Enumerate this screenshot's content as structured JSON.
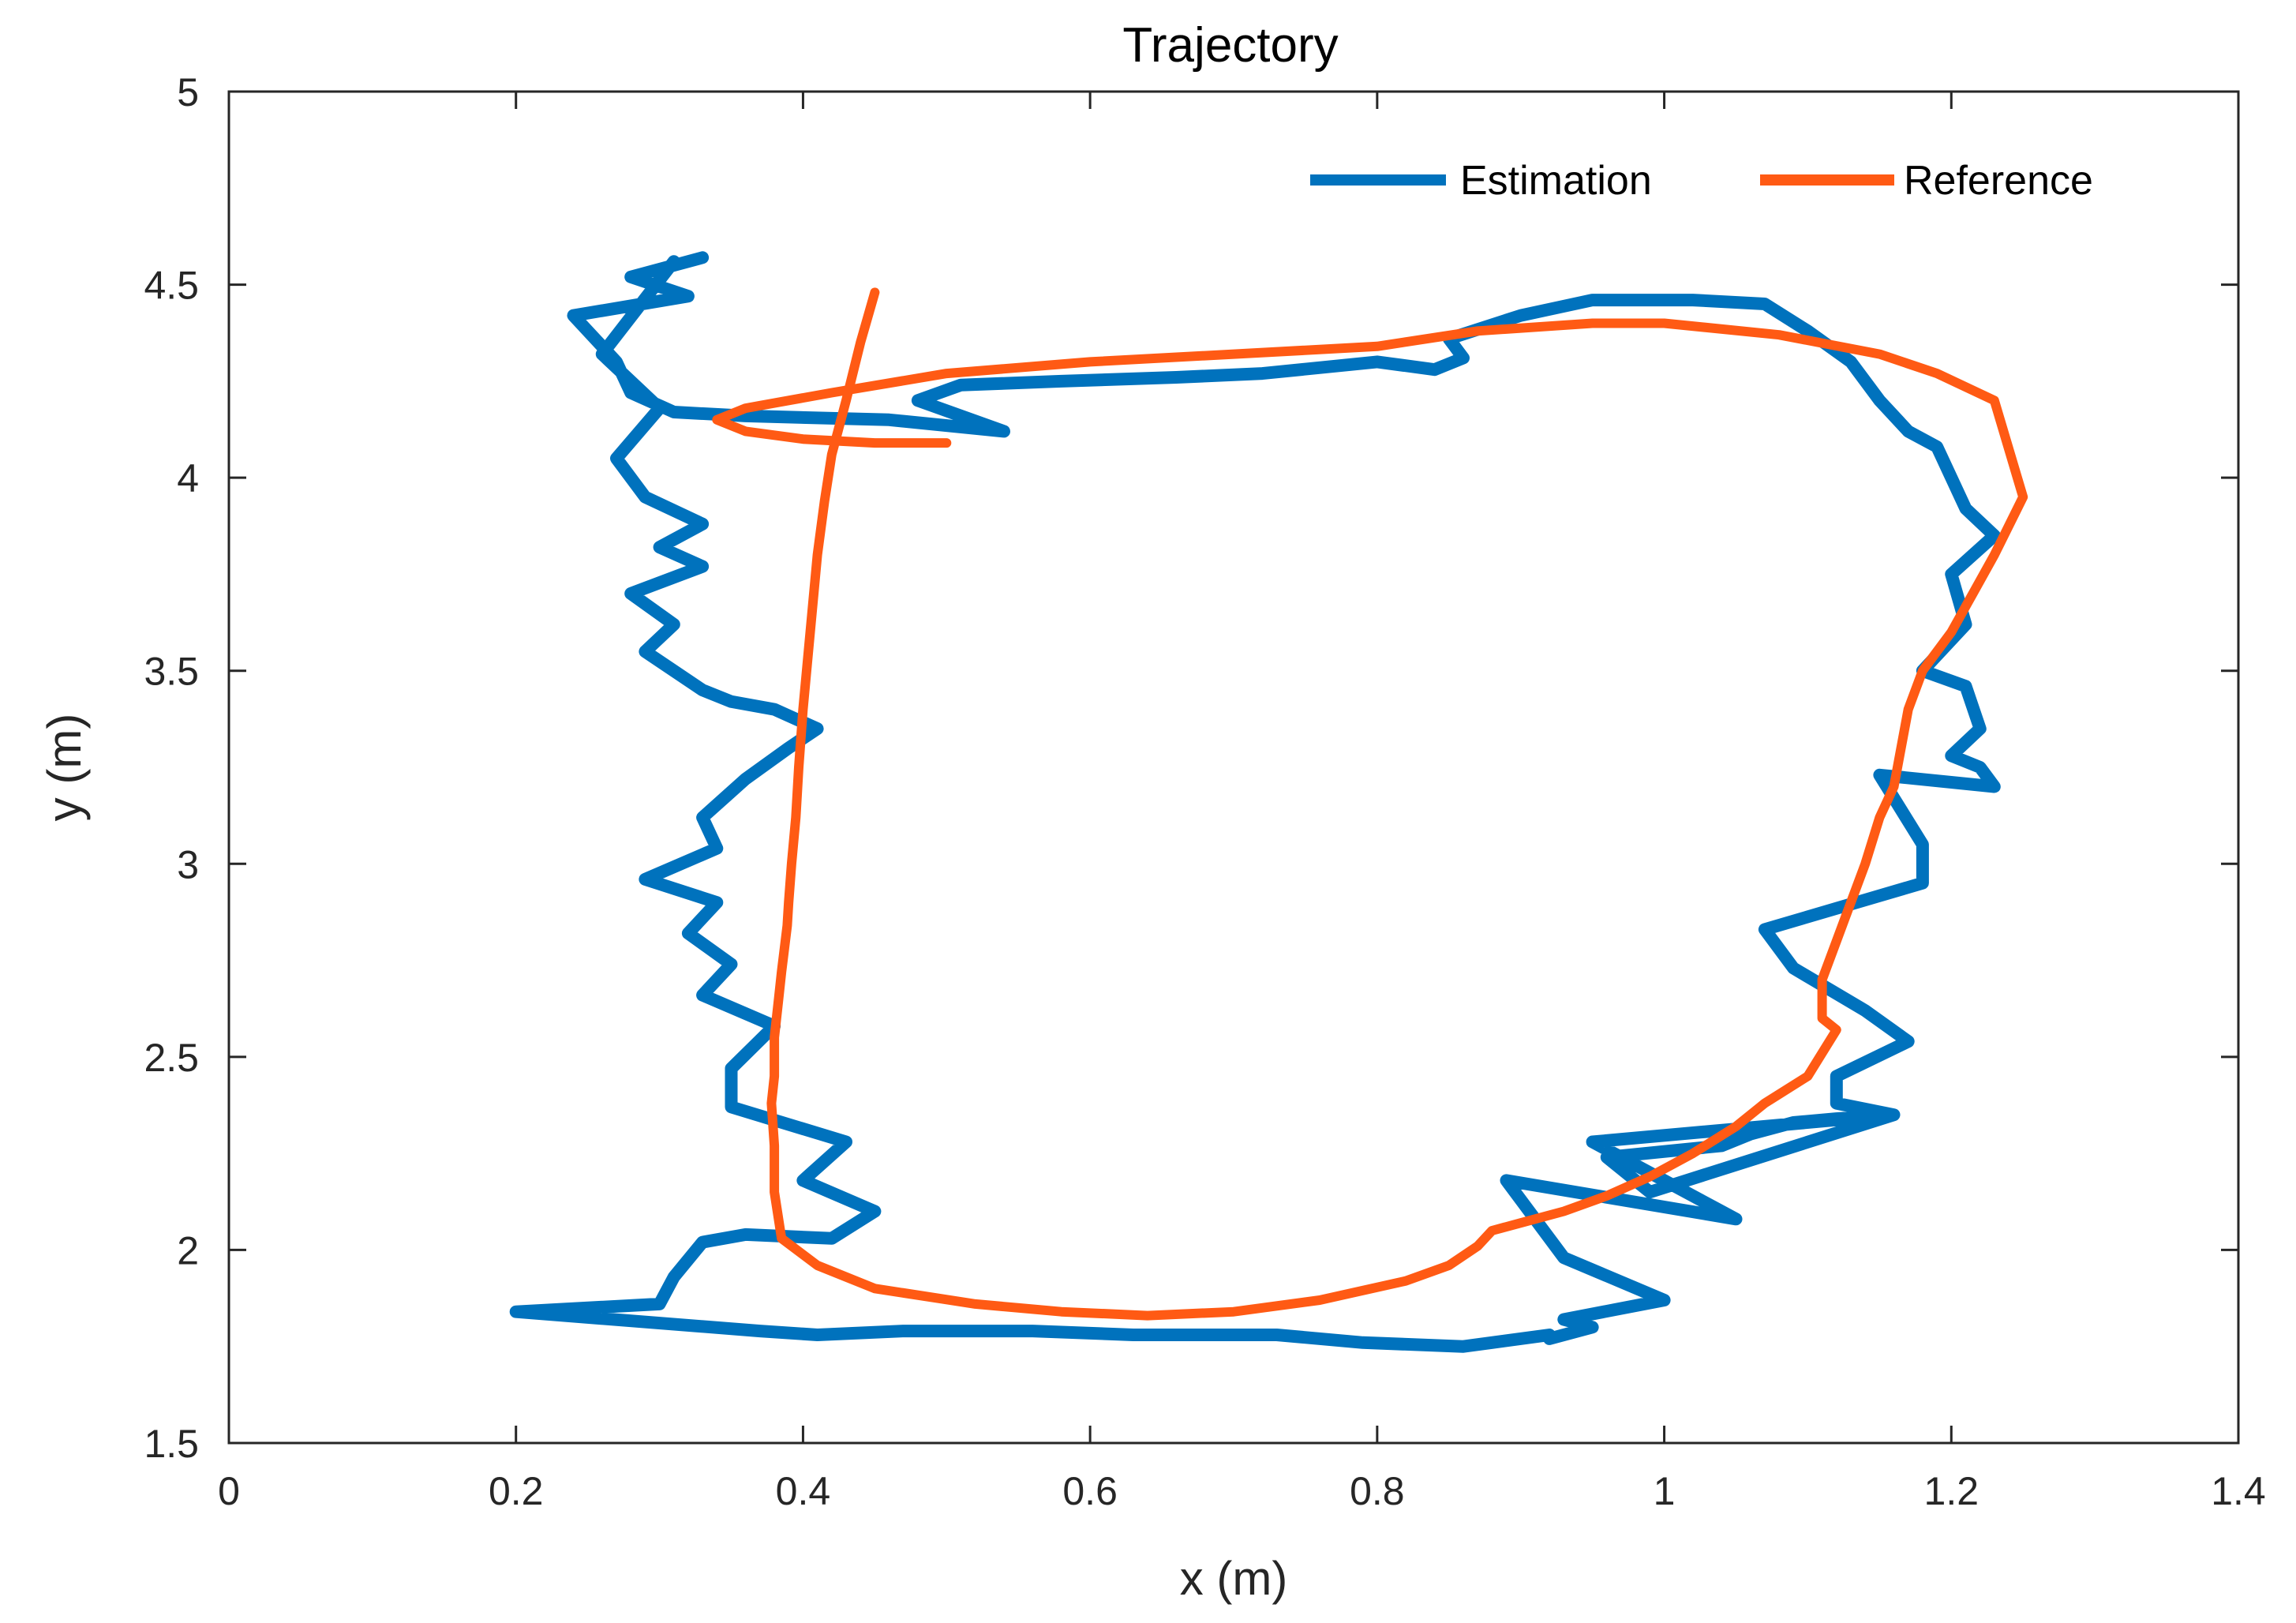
{
  "chart_data": {
    "type": "line",
    "title": "Trajectory",
    "xlabel": "x (m)",
    "ylabel": "y (m)",
    "xlim": [
      0,
      1.4
    ],
    "ylim": [
      1.5,
      5
    ],
    "xticks": [
      0,
      0.2,
      0.4,
      0.6,
      0.8,
      1,
      1.2,
      1.4
    ],
    "yticks": [
      1.5,
      2,
      2.5,
      3,
      3.5,
      4,
      4.5,
      5
    ],
    "xtick_labels": [
      "0",
      "0.2",
      "0.4",
      "0.6",
      "0.8",
      "1",
      "1.2",
      "1.4"
    ],
    "ytick_labels": [
      "1.5",
      "2",
      "2.5",
      "3",
      "3.5",
      "4",
      "4.5",
      "5"
    ],
    "grid": false,
    "legend_position": "top-right",
    "series": [
      {
        "name": "Estimation",
        "color": "#0072BD",
        "x": [
          0.33,
          0.28,
          0.32,
          0.24,
          0.27,
          0.28,
          0.31,
          0.36,
          0.46,
          0.54,
          0.48,
          0.51,
          0.58,
          0.66,
          0.72,
          0.8,
          0.84,
          0.86,
          0.85,
          0.9,
          0.95,
          1.02,
          1.07,
          1.1,
          1.13,
          1.15,
          1.17,
          1.19,
          1.2,
          1.21,
          1.23,
          1.2,
          1.21,
          1.18,
          1.21,
          1.22,
          1.2,
          1.22,
          1.23,
          1.15,
          1.18,
          1.18,
          1.07,
          1.09,
          1.14,
          1.17,
          1.12,
          1.12,
          1.16,
          1.12,
          1.09,
          1.06,
          1.04,
          0.96,
          0.99,
          1.16,
          0.95,
          1.05,
          0.89,
          0.93,
          1.0,
          0.93,
          0.95,
          0.92,
          0.92,
          0.88,
          0.86,
          0.79,
          0.73,
          0.63,
          0.56,
          0.47,
          0.41,
          0.37,
          0.2,
          0.3,
          0.31,
          0.33,
          0.36,
          0.42,
          0.45,
          0.4,
          0.43,
          0.35,
          0.35,
          0.38,
          0.33,
          0.35,
          0.32,
          0.34,
          0.29,
          0.34,
          0.33,
          0.36,
          0.39,
          0.41,
          0.38,
          0.35,
          0.33,
          0.29,
          0.31,
          0.28,
          0.33,
          0.3,
          0.33,
          0.29,
          0.27,
          0.3,
          0.26,
          0.31
        ],
        "y": [
          4.57,
          4.52,
          4.47,
          4.42,
          4.3,
          4.22,
          4.17,
          4.16,
          4.15,
          4.12,
          4.2,
          4.24,
          4.25,
          4.26,
          4.27,
          4.3,
          4.28,
          4.31,
          4.36,
          4.42,
          4.46,
          4.46,
          4.45,
          4.38,
          4.3,
          4.2,
          4.12,
          4.08,
          4.0,
          3.92,
          3.85,
          3.75,
          3.62,
          3.5,
          3.46,
          3.35,
          3.28,
          3.25,
          3.2,
          3.23,
          3.05,
          2.95,
          2.83,
          2.73,
          2.62,
          2.54,
          2.45,
          2.38,
          2.35,
          2.34,
          2.33,
          2.3,
          2.27,
          2.24,
          2.15,
          2.35,
          2.28,
          2.08,
          2.18,
          1.98,
          1.87,
          1.82,
          1.8,
          1.77,
          1.78,
          1.76,
          1.75,
          1.76,
          1.78,
          1.78,
          1.79,
          1.79,
          1.78,
          1.79,
          1.84,
          1.86,
          1.93,
          2.02,
          2.04,
          2.03,
          2.1,
          2.18,
          2.28,
          2.37,
          2.47,
          2.58,
          2.66,
          2.74,
          2.82,
          2.9,
          2.96,
          3.04,
          3.12,
          3.22,
          3.3,
          3.35,
          3.4,
          3.42,
          3.45,
          3.55,
          3.62,
          3.7,
          3.77,
          3.82,
          3.88,
          3.95,
          4.05,
          4.18,
          4.32,
          4.56
        ]
      },
      {
        "name": "Reference",
        "color": "#FF5A14",
        "x": [
          0.45,
          0.44,
          0.43,
          0.42,
          0.415,
          0.41,
          0.405,
          0.4,
          0.397,
          0.395,
          0.392,
          0.39,
          0.389,
          0.387,
          0.385,
          0.383,
          0.38,
          0.38,
          0.378,
          0.38,
          0.38,
          0.385,
          0.41,
          0.45,
          0.52,
          0.58,
          0.64,
          0.7,
          0.76,
          0.82,
          0.85,
          0.87,
          0.88,
          0.9,
          0.93,
          0.96,
          0.99,
          1.02,
          1.05,
          1.07,
          1.1,
          1.12,
          1.11,
          1.11,
          1.12,
          1.13,
          1.14,
          1.15,
          1.16,
          1.165,
          1.17,
          1.18,
          1.2,
          1.215,
          1.23,
          1.25,
          1.23,
          1.19,
          1.15,
          1.08,
          1.0,
          0.95,
          0.87,
          0.8,
          0.6,
          0.5,
          0.42,
          0.36,
          0.34,
          0.36,
          0.4,
          0.45,
          0.5
        ],
        "y": [
          4.48,
          4.35,
          4.2,
          4.06,
          3.94,
          3.8,
          3.6,
          3.4,
          3.25,
          3.12,
          3.0,
          2.9,
          2.84,
          2.78,
          2.72,
          2.65,
          2.55,
          2.45,
          2.38,
          2.27,
          2.15,
          2.03,
          1.96,
          1.9,
          1.86,
          1.84,
          1.83,
          1.84,
          1.87,
          1.92,
          1.96,
          2.01,
          2.05,
          2.07,
          2.1,
          2.14,
          2.19,
          2.25,
          2.32,
          2.38,
          2.45,
          2.57,
          2.6,
          2.7,
          2.8,
          2.9,
          3.0,
          3.12,
          3.2,
          3.3,
          3.4,
          3.5,
          3.6,
          3.7,
          3.8,
          3.95,
          4.2,
          4.27,
          4.32,
          4.37,
          4.4,
          4.4,
          4.38,
          4.34,
          4.3,
          4.27,
          4.22,
          4.18,
          4.15,
          4.12,
          4.1,
          4.09,
          4.09
        ]
      }
    ]
  }
}
